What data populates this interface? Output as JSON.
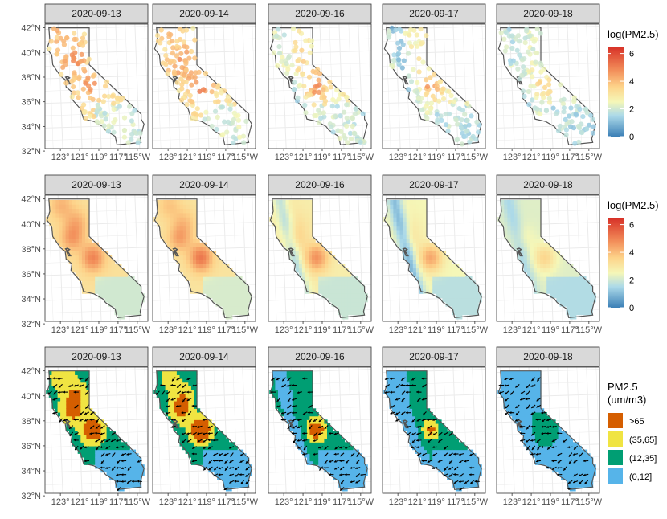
{
  "chart_data": [
    {
      "type": "scatter",
      "title": "",
      "facets": [
        "2020-09-13",
        "2020-09-14",
        "2020-09-16",
        "2020-09-17",
        "2020-09-18"
      ],
      "x_ticks": [
        "123°",
        "121°",
        "119°",
        "117°",
        "115°W"
      ],
      "y_ticks": [
        "32°N",
        "34°N",
        "36°N",
        "38°N",
        "40°N",
        "42°N"
      ],
      "legend": {
        "title": "log(PM2.5)",
        "breaks": [
          "0",
          "2",
          "4",
          "6"
        ],
        "range": [
          0,
          6.5
        ],
        "placement": "right"
      },
      "xlim": [
        -124.6,
        -113.9
      ],
      "ylim": [
        32.2,
        42.3
      ]
    },
    {
      "type": "heatmap",
      "title": "",
      "facets": [
        "2020-09-13",
        "2020-09-14",
        "2020-09-16",
        "2020-09-17",
        "2020-09-18"
      ],
      "x_ticks": [
        "123°",
        "121°",
        "119°",
        "117°",
        "115°W"
      ],
      "y_ticks": [
        "32°N",
        "34°N",
        "36°N",
        "38°N",
        "40°N",
        "42°N"
      ],
      "legend": {
        "title": "log(PM2.5)",
        "breaks": [
          "0",
          "2",
          "4",
          "6"
        ],
        "range": [
          0,
          6.5
        ],
        "placement": "right"
      },
      "xlim": [
        -124.6,
        -113.9
      ],
      "ylim": [
        32.2,
        42.3
      ]
    },
    {
      "type": "heatmap",
      "title": "",
      "facets": [
        "2020-09-13",
        "2020-09-14",
        "2020-09-16",
        "2020-09-17",
        "2020-09-18"
      ],
      "x_ticks": [
        "123°",
        "121°",
        "119°",
        "117°",
        "115°W"
      ],
      "y_ticks": [
        "32°N",
        "34°N",
        "36°N",
        "38°N",
        "40°N",
        "42°N"
      ],
      "legend": {
        "title_line1": "PM2.5",
        "title_line2": "(um/m3)",
        "categories": [
          {
            "label": ">65",
            "color": "#d55e00"
          },
          {
            "label": "(35,65]",
            "color": "#f0e442"
          },
          {
            "label": "(12,35]",
            "color": "#009e73"
          },
          {
            "label": "(0,12]",
            "color": "#56b4e9"
          }
        ],
        "placement": "right"
      },
      "xlim": [
        -124.6,
        -113.9
      ],
      "ylim": [
        32.2,
        42.3
      ]
    }
  ],
  "colors": {
    "strip_fill": "#d9d9d9",
    "grid": "#ebebeb",
    "state_outline": "#555555",
    "scale": [
      "#3b7fb6",
      "#abd9e9",
      "#f5f7b8",
      "#fdd38a",
      "#f28e5a",
      "#d73027"
    ]
  }
}
